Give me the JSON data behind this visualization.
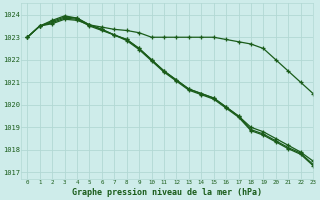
{
  "background_color": "#ceecea",
  "grid_color": "#b2d8d4",
  "line_color": "#1a5c1a",
  "xlabel": "Graphe pression niveau de la mer (hPa)",
  "ylim": [
    1016.7,
    1024.5
  ],
  "xlim": [
    -0.5,
    23
  ],
  "yticks": [
    1017,
    1018,
    1019,
    1020,
    1021,
    1022,
    1023,
    1024
  ],
  "xticks": [
    0,
    1,
    2,
    3,
    4,
    5,
    6,
    7,
    8,
    9,
    10,
    11,
    12,
    13,
    14,
    15,
    16,
    17,
    18,
    19,
    20,
    21,
    22,
    23
  ],
  "series": [
    [
      1023.0,
      1023.5,
      1023.6,
      1023.8,
      1023.75,
      1023.55,
      1023.45,
      1023.35,
      1023.3,
      1023.2,
      1023.0,
      1023.0,
      1023.0,
      1023.0,
      1023.0,
      1023.0,
      1022.9,
      1022.8,
      1022.7,
      1022.5,
      1022.0,
      1021.5,
      1021.0,
      1020.5
    ],
    [
      1023.0,
      1023.5,
      1023.65,
      1023.85,
      1023.8,
      1023.5,
      1023.3,
      1023.1,
      1022.9,
      1022.5,
      1022.0,
      1021.5,
      1021.1,
      1020.7,
      1020.5,
      1020.3,
      1019.9,
      1019.5,
      1019.0,
      1018.8,
      1018.5,
      1018.2,
      1017.9,
      1017.5
    ],
    [
      1023.0,
      1023.5,
      1023.7,
      1023.9,
      1023.85,
      1023.55,
      1023.35,
      1023.1,
      1022.9,
      1022.5,
      1022.0,
      1021.5,
      1021.1,
      1020.7,
      1020.5,
      1020.3,
      1019.9,
      1019.5,
      1018.9,
      1018.7,
      1018.4,
      1018.1,
      1017.85,
      1017.35
    ],
    [
      1023.0,
      1023.5,
      1023.75,
      1023.95,
      1023.85,
      1023.55,
      1023.35,
      1023.1,
      1022.85,
      1022.45,
      1021.95,
      1021.45,
      1021.05,
      1020.65,
      1020.45,
      1020.25,
      1019.85,
      1019.45,
      1018.85,
      1018.65,
      1018.35,
      1018.05,
      1017.8,
      1017.3
    ]
  ]
}
